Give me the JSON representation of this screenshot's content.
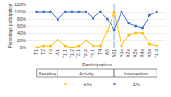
{
  "chart_data": {
    "type": "line",
    "xlabel": "Participation",
    "ylabel": "Percentage participation",
    "categories": [
      "T1",
      "T2",
      "T3",
      "A1",
      "T1.1",
      "T1.2",
      "T2.1",
      "T2.2",
      "T3.1",
      "T4",
      "A5",
      "A01",
      "A1x",
      "A2x",
      "A3x",
      "A4x",
      "A5x",
      "T1.3"
    ],
    "series": [
      {
        "name": "A%",
        "color": "#FFC000",
        "values": [
          0,
          5,
          5,
          22,
          5,
          0,
          5,
          20,
          5,
          5,
          45,
          100,
          5,
          35,
          40,
          40,
          10,
          5
        ]
      },
      {
        "name": "1%",
        "color": "#4472C4",
        "values": [
          100,
          100,
          100,
          78,
          100,
          100,
          100,
          100,
          82,
          100,
          80,
          50,
          100,
          68,
          60,
          55,
          90,
          100
        ]
      }
    ],
    "marker": "circle",
    "ylim": [
      0,
      120
    ],
    "yticks": [
      {
        "value": 0,
        "label": "0%"
      },
      {
        "value": 20,
        "label": "20%"
      },
      {
        "value": 40,
        "label": "40%"
      },
      {
        "value": 60,
        "label": "60%"
      },
      {
        "value": 80,
        "label": "80%"
      },
      {
        "value": 100,
        "label": "100%"
      },
      {
        "value": 120,
        "label": "120%"
      }
    ],
    "grid": true,
    "legend": "bottom",
    "vline": {
      "x": "A01",
      "color": "#a8c8f0"
    },
    "sections": [
      {
        "label": "Baseline",
        "from": "T1",
        "to": "A1"
      },
      {
        "label": "Activity",
        "from": "A1",
        "to": "A01"
      },
      {
        "label": "Intervention",
        "from": "A01",
        "to": "T1.3"
      }
    ]
  }
}
